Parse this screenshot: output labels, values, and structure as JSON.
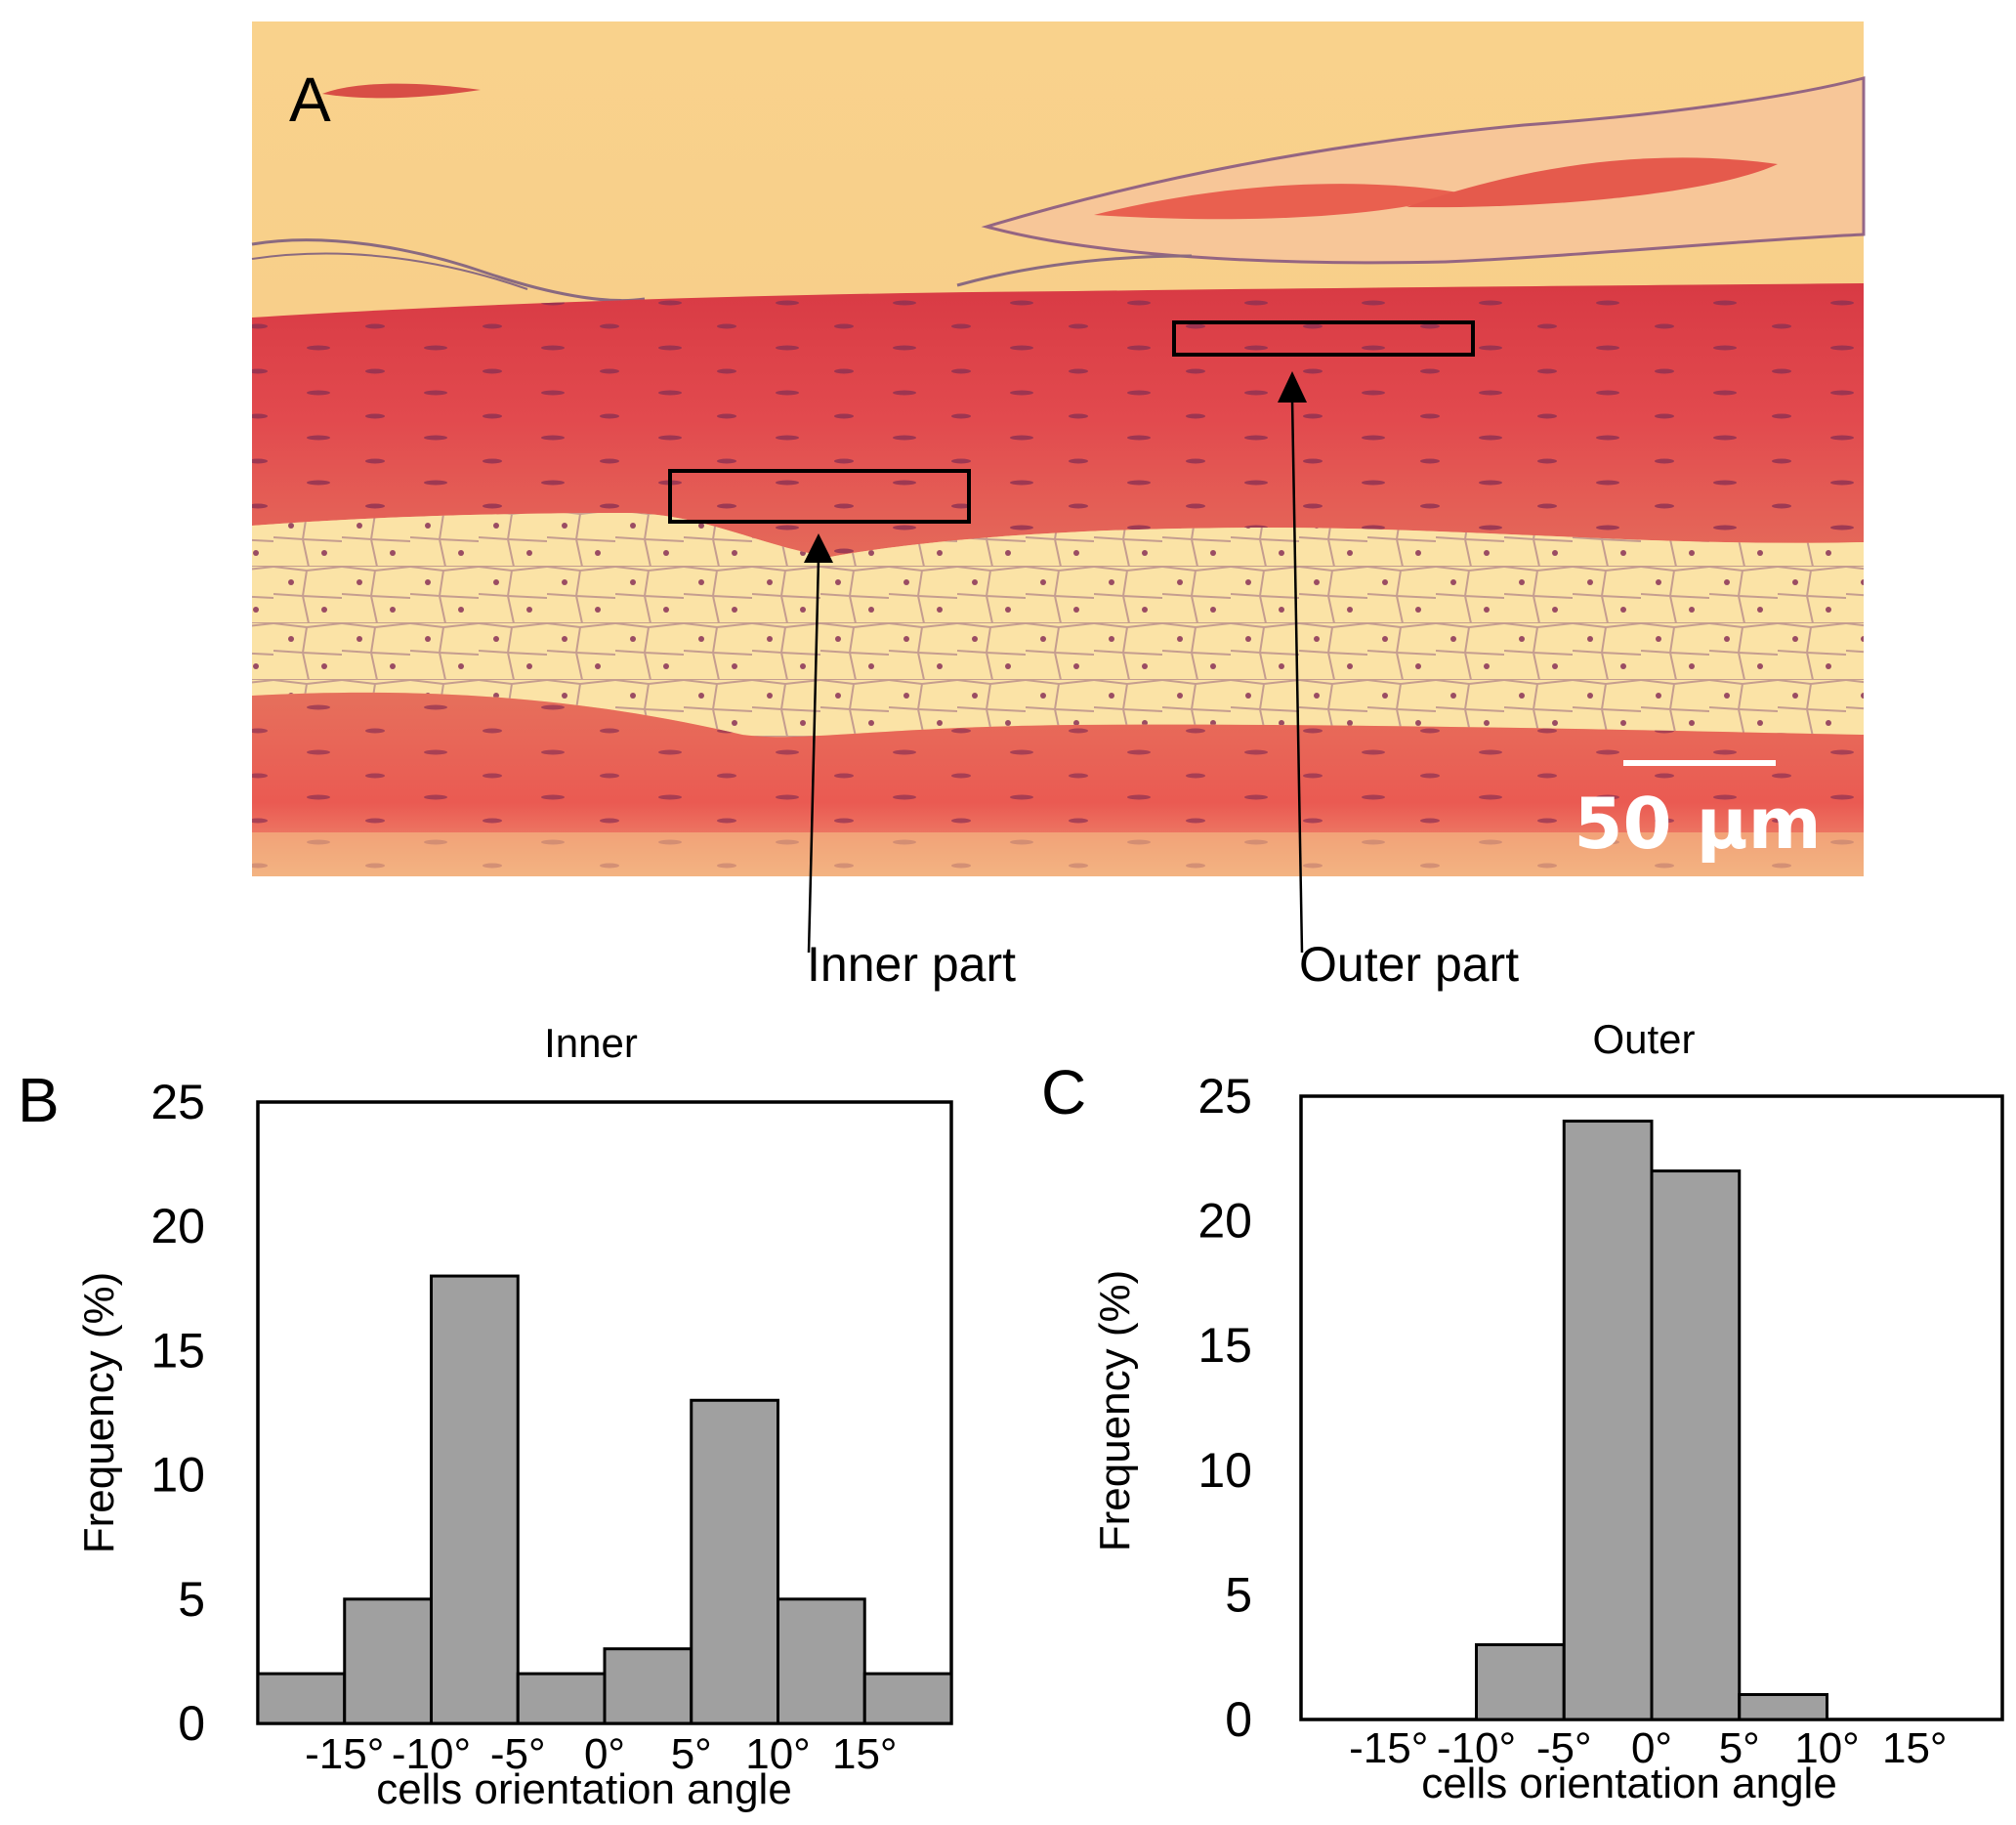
{
  "panel_a": {
    "letter": "A",
    "scale_bar": "50 µm",
    "callouts": {
      "inner": "Inner part",
      "outer": "Outer part"
    }
  },
  "colors": {
    "bar_fill": "#a0a0a0",
    "bar_stroke": "#000000",
    "background": "#ffffff",
    "scale_bar": "#ffffff"
  },
  "chart_data": [
    {
      "type": "bar",
      "panel": "B",
      "title": "Inner",
      "xlabel": "cells orientation angle",
      "ylabel": "Frequency (%)",
      "ylim": [
        0,
        25
      ],
      "yticks": [
        "0",
        "5",
        "10",
        "15",
        "20",
        "25"
      ],
      "xtick_labels": [
        "-15°",
        "-10°",
        "-5°",
        "0°",
        "5°",
        "10°",
        "15°"
      ],
      "categories": [
        "-20° to -15°",
        "-15° to -10°",
        "-10° to -5°",
        "-5° to 0°",
        "0° to 5°",
        "5° to 10°",
        "10° to 15°",
        "15° to 20°"
      ],
      "values": [
        2,
        5,
        18,
        2,
        3,
        13,
        5,
        2
      ]
    },
    {
      "type": "bar",
      "panel": "C",
      "title": "Outer",
      "xlabel": "cells orientation angle",
      "ylabel": "Frequency (%)",
      "ylim": [
        0,
        25
      ],
      "yticks": [
        "0",
        "5",
        "10",
        "15",
        "20",
        "25"
      ],
      "xtick_labels": [
        "-15°",
        "-10°",
        "-5°",
        "0°",
        "5°",
        "10°",
        "15°"
      ],
      "categories": [
        "-20° to -15°",
        "-15° to -10°",
        "-10° to -5°",
        "-5° to 0°",
        "0° to 5°",
        "5° to 10°",
        "10° to 15°",
        "15° to 20°"
      ],
      "values": [
        0,
        0,
        3,
        24,
        22,
        1,
        0,
        0
      ]
    }
  ]
}
